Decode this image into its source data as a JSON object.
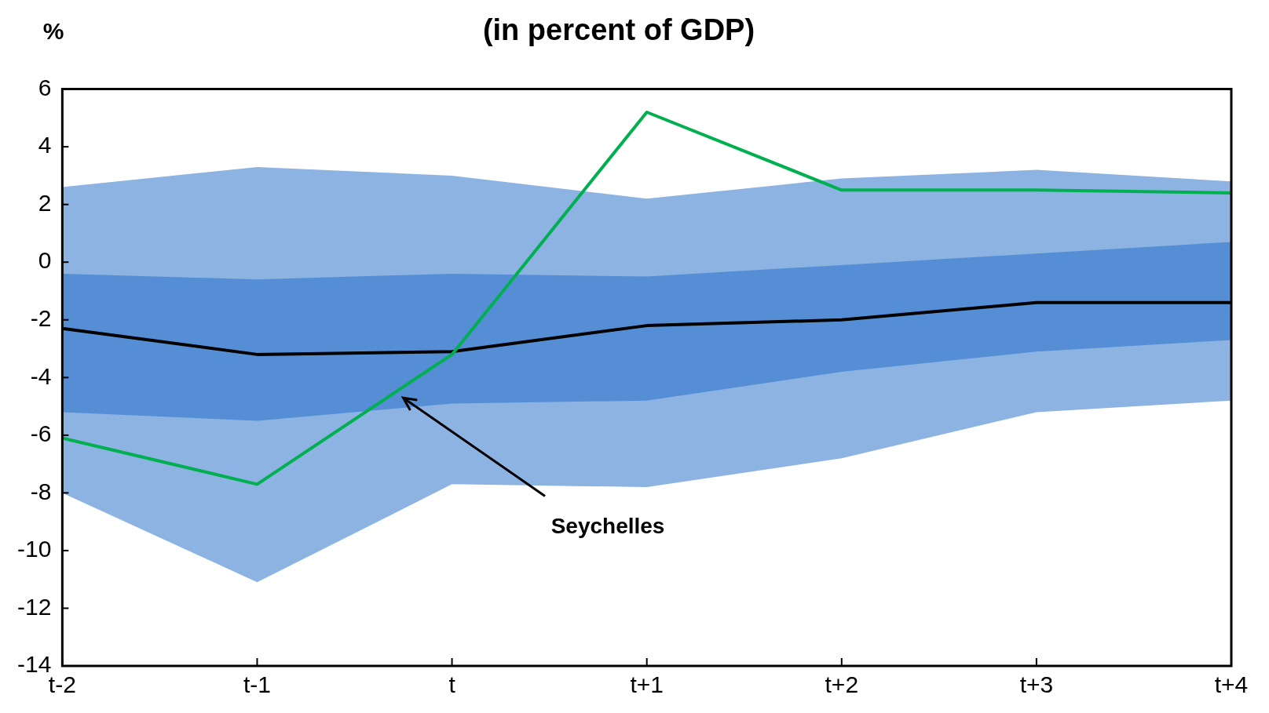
{
  "chart_data": {
    "type": "line",
    "title": "(in percent of GDP)",
    "ylabel": "%",
    "categories": [
      "t-2",
      "t-1",
      "t",
      "t+1",
      "t+2",
      "t+3",
      "t+4"
    ],
    "series": [
      {
        "color": "#8db3e2",
        "values": [
          null,
          null,
          null,
          null,
          null,
          null,
          null
        ],
        "lower": [
          -8.0,
          -11.1,
          -7.7,
          -7.8,
          -6.8,
          -5.2,
          -4.8
        ],
        "upper": [
          2.6,
          3.3,
          3.0,
          2.2,
          2.9,
          3.2,
          2.8
        ]
      },
      {
        "color": "#558ed5",
        "values": [
          null,
          null,
          null,
          null,
          null,
          null,
          null
        ],
        "lower": [
          -5.2,
          -5.5,
          -4.9,
          -4.8,
          -3.8,
          -3.1,
          -2.7
        ],
        "upper": [
          -0.4,
          -0.6,
          -0.4,
          -0.5,
          -0.1,
          0.3,
          0.7
        ]
      },
      {
        "type": "line",
        "color": "#000000",
        "values": [
          -2.3,
          -3.2,
          -3.1,
          -2.2,
          -2.0,
          -1.4,
          -1.4
        ]
      },
      {
        "type": "line",
        "name": "Seychelles",
        "color": "#00b050",
        "values": [
          -6.1,
          -7.7,
          -3.2,
          5.2,
          2.5,
          2.5,
          2.4
        ]
      }
    ],
    "ylim": [
      -14,
      6
    ],
    "yticks": [
      -14,
      -12,
      -10,
      -8,
      -6,
      -4,
      -2,
      0,
      2,
      4,
      6
    ],
    "grid": false,
    "legend": false,
    "marker": "none",
    "line_style": "solid"
  }
}
